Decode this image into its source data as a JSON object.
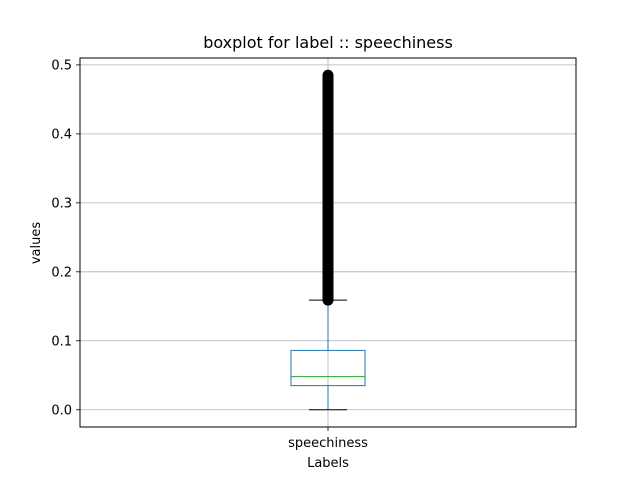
{
  "chart_data": {
    "type": "box",
    "title": "boxplot for label :: speechiness",
    "xlabel": "Labels",
    "ylabel": "values",
    "categories": [
      "speechiness"
    ],
    "ylim": [
      -0.025,
      0.51
    ],
    "yticks": [
      0.0,
      0.1,
      0.2,
      0.3,
      0.4,
      0.5
    ],
    "ytick_labels": [
      "0.0",
      "0.1",
      "0.2",
      "0.3",
      "0.4",
      "0.5"
    ],
    "grid": true,
    "boxes": [
      {
        "name": "speechiness",
        "whisker_low": 0.0,
        "q1": 0.035,
        "median": 0.048,
        "q3": 0.086,
        "whisker_high": 0.159,
        "outlier_range": [
          0.159,
          0.485
        ]
      }
    ],
    "colors": {
      "box": "#1f77b4",
      "median": "#2ca02c",
      "whisker_cap": "#000000",
      "outliers": "#000000",
      "grid": "#b0b0b0"
    }
  }
}
